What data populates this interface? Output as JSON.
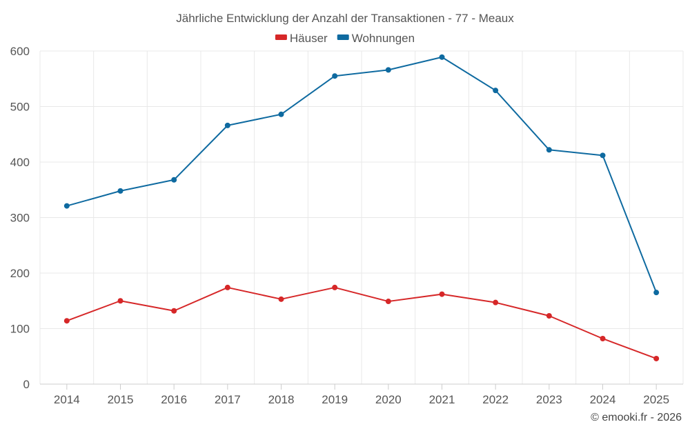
{
  "chart_data": {
    "type": "line",
    "title": "Jährliche Entwicklung der Anzahl der Transaktionen - 77 - Meaux",
    "categories": [
      "2014",
      "2015",
      "2016",
      "2017",
      "2018",
      "2019",
      "2020",
      "2021",
      "2022",
      "2023",
      "2024",
      "2025"
    ],
    "series": [
      {
        "name": "Häuser",
        "color": "#d62728",
        "values": [
          114,
          150,
          132,
          174,
          153,
          174,
          149,
          162,
          147,
          123,
          82,
          46
        ]
      },
      {
        "name": "Wohnungen",
        "color": "#0e6aa0",
        "values": [
          321,
          348,
          368,
          466,
          486,
          555,
          566,
          589,
          529,
          422,
          412,
          165
        ]
      }
    ],
    "yticks": [
      0,
      100,
      200,
      300,
      400,
      500,
      600
    ],
    "ylim": [
      0,
      600
    ],
    "xlabel": "",
    "ylabel": "",
    "grid": true,
    "legend_position": "top-center"
  },
  "credit": "© emooki.fr - 2026"
}
